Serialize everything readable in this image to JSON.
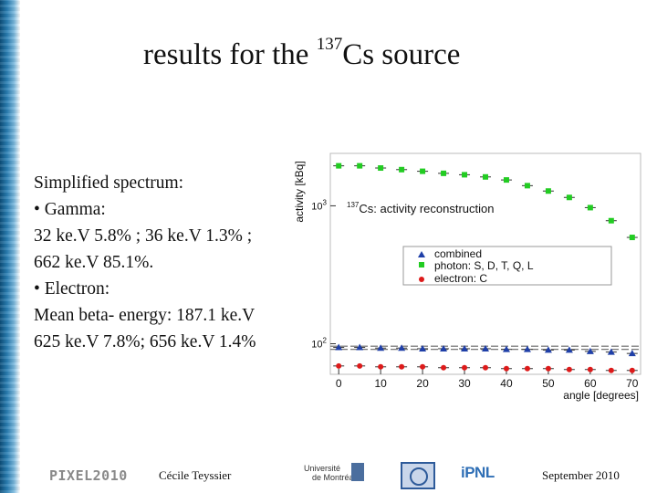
{
  "slide": {
    "title_pre": "results for the ",
    "title_sup": "137",
    "title_post": "Cs source",
    "lines": [
      "Simplified spectrum:",
      "•  Gamma:",
      "32 ke.V 5.8% ; 36 ke.V 1.3% ;",
      "662 ke.V 85.1%.",
      "•  Electron:",
      "Mean beta- energy: 187.1 ke.V",
      "625 ke.V 7.8%; 656 ke.V 1.4%"
    ],
    "footer": {
      "conference": "PIXEL2010",
      "author": "Cécile Teyssier",
      "date": "September 2010",
      "udem_line1": "Université",
      "udem_line2": "de Montréal",
      "ipnl": "iPNL"
    }
  },
  "chart_data": {
    "type": "scatter",
    "title_sup": "137",
    "title": "Cs: activity reconstruction",
    "xlabel": "angle [degrees]",
    "ylabel": "activity [kBq]",
    "xlim": [
      -2,
      72
    ],
    "ylim": [
      60,
      2400
    ],
    "yscale": "log",
    "x_ticks": [
      0,
      10,
      20,
      30,
      40,
      50,
      60,
      70
    ],
    "y_ticks": [
      {
        "value": 100,
        "label_base": "10",
        "label_exp": "2"
      },
      {
        "value": 1000,
        "label_base": "10",
        "label_exp": "3"
      }
    ],
    "x": [
      0,
      5,
      10,
      15,
      20,
      25,
      30,
      35,
      40,
      45,
      50,
      55,
      60,
      65,
      70
    ],
    "legend_position": "center-right",
    "reference_lines": [
      91,
      96
    ],
    "series": [
      {
        "name": "combined",
        "marker": "triangle",
        "color": "#1f3fa8",
        "values": [
          94,
          94,
          93,
          93,
          92,
          92,
          92,
          92,
          91,
          91,
          90,
          90,
          88,
          87,
          85
        ]
      },
      {
        "name": "photon: S, D, T, Q, L",
        "marker": "square",
        "color": "#22cc22",
        "values": [
          1950,
          1950,
          1880,
          1830,
          1780,
          1720,
          1680,
          1620,
          1540,
          1400,
          1280,
          1150,
          970,
          780,
          590
        ]
      },
      {
        "name": "electron: C",
        "marker": "circle",
        "color": "#dd1a1a",
        "values": [
          69,
          69,
          68,
          68,
          68,
          67,
          67,
          67,
          66,
          66,
          66,
          65,
          65,
          64,
          64
        ]
      }
    ]
  }
}
